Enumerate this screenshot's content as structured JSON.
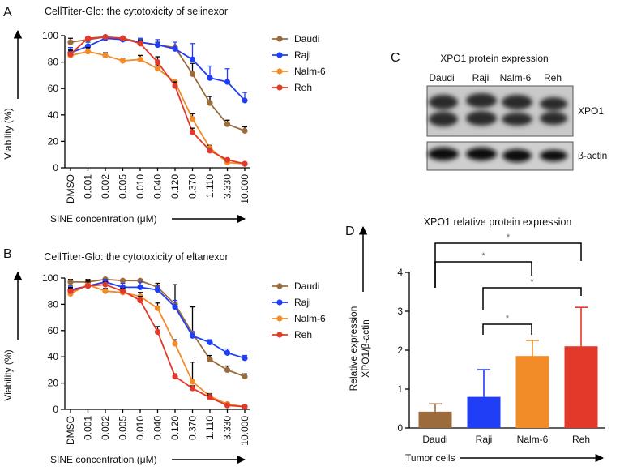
{
  "panels": {
    "a": "A",
    "b": "B",
    "c": "C",
    "d": "D"
  },
  "blot": {
    "title": "XPO1 protein expression",
    "lanes": [
      "Daudi",
      "Raji",
      "Nalm-6",
      "Reh"
    ],
    "bands": [
      "XPO1",
      "β-actin"
    ]
  },
  "chart_data": [
    {
      "type": "line",
      "title": "CellTiter-Glo: the cytotoxicity of selinexor",
      "xlabel": "SINE concentration (μM)",
      "ylabel": "Viability (%)",
      "categories": [
        "DMSO",
        "0.001",
        "0.002",
        "0.005",
        "0.010",
        "0.040",
        "0.120",
        "0.370",
        "1.110",
        "3.330",
        "10.000"
      ],
      "ylim": [
        0,
        100
      ],
      "yticks": [
        0,
        20,
        40,
        60,
        80,
        100
      ],
      "series": [
        {
          "name": "Daudi",
          "color": "#9c6b3c",
          "values": [
            95,
            97,
            99,
            98,
            95,
            93,
            91,
            71,
            49,
            33,
            28
          ],
          "errors": [
            3,
            2,
            1,
            1,
            2,
            2,
            2,
            8,
            5,
            3,
            3
          ]
        },
        {
          "name": "Raji",
          "color": "#1f3ef5",
          "values": [
            87,
            92,
            98,
            97,
            95,
            93,
            90,
            82,
            68,
            65,
            51
          ],
          "errors": [
            4,
            3,
            1,
            2,
            3,
            4,
            5,
            12,
            9,
            10,
            6
          ]
        },
        {
          "name": "Nalm-6",
          "color": "#f28c28",
          "values": [
            85,
            88,
            85,
            81,
            82,
            75,
            65,
            37,
            15,
            4,
            3
          ],
          "errors": [
            4,
            3,
            2,
            2,
            3,
            3,
            2,
            4,
            2,
            1,
            1
          ]
        },
        {
          "name": "Reh",
          "color": "#e23a2a",
          "values": [
            86,
            98,
            99,
            98,
            94,
            80,
            62,
            27,
            13,
            6,
            3
          ],
          "errors": [
            3,
            1,
            1,
            1,
            2,
            4,
            3,
            3,
            2,
            1,
            1
          ]
        }
      ]
    },
    {
      "type": "line",
      "title": "CellTiter-Glo: the cytotoxicity of eltanexor",
      "xlabel": "SINE concentration (μM)",
      "ylabel": "Viability (%)",
      "categories": [
        "DMSO",
        "0.001",
        "0.002",
        "0.005",
        "0.010",
        "0.040",
        "0.120",
        "0.370",
        "1.110",
        "3.330",
        "10.000"
      ],
      "ylim": [
        0,
        100
      ],
      "yticks": [
        0,
        20,
        40,
        60,
        80,
        100
      ],
      "series": [
        {
          "name": "Daudi",
          "color": "#9c6b3c",
          "values": [
            97,
            97,
            99,
            98,
            98,
            93,
            80,
            58,
            38,
            30,
            25
          ],
          "errors": [
            2,
            2,
            1,
            1,
            1,
            3,
            15,
            20,
            3,
            3,
            2
          ]
        },
        {
          "name": "Raji",
          "color": "#1f3ef5",
          "values": [
            91,
            94,
            97,
            93,
            93,
            91,
            78,
            56,
            51,
            43,
            39
          ],
          "errors": [
            3,
            2,
            2,
            3,
            4,
            3,
            5,
            3,
            2,
            3,
            2
          ]
        },
        {
          "name": "Nalm-6",
          "color": "#f28c28",
          "values": [
            88,
            95,
            90,
            89,
            86,
            77,
            50,
            21,
            10,
            4,
            2
          ],
          "errors": [
            4,
            3,
            2,
            2,
            3,
            4,
            3,
            15,
            2,
            1,
            1
          ]
        },
        {
          "name": "Reh",
          "color": "#e23a2a",
          "values": [
            90,
            94,
            95,
            90,
            83,
            59,
            25,
            16,
            9,
            3,
            2
          ],
          "errors": [
            3,
            3,
            2,
            2,
            3,
            4,
            2,
            2,
            2,
            1,
            1
          ]
        }
      ]
    },
    {
      "type": "bar",
      "title": "XPO1 relative protein expression",
      "xlabel": "Tumor cells",
      "ylabel": [
        "Relative expression",
        "XPO1/β-actin"
      ],
      "categories": [
        "Daudi",
        "Raji",
        "Nalm-6",
        "Reh"
      ],
      "values": [
        0.42,
        0.8,
        1.85,
        2.1
      ],
      "errors": [
        0.2,
        0.7,
        0.4,
        1.0
      ],
      "colors": [
        "#9c6b3c",
        "#1f3ef5",
        "#f28c28",
        "#e23a2a"
      ],
      "ylim": [
        0,
        4
      ],
      "yticks": [
        0,
        1,
        2,
        3,
        4
      ],
      "annotations": [
        "*",
        "*",
        "*",
        "*"
      ]
    }
  ]
}
